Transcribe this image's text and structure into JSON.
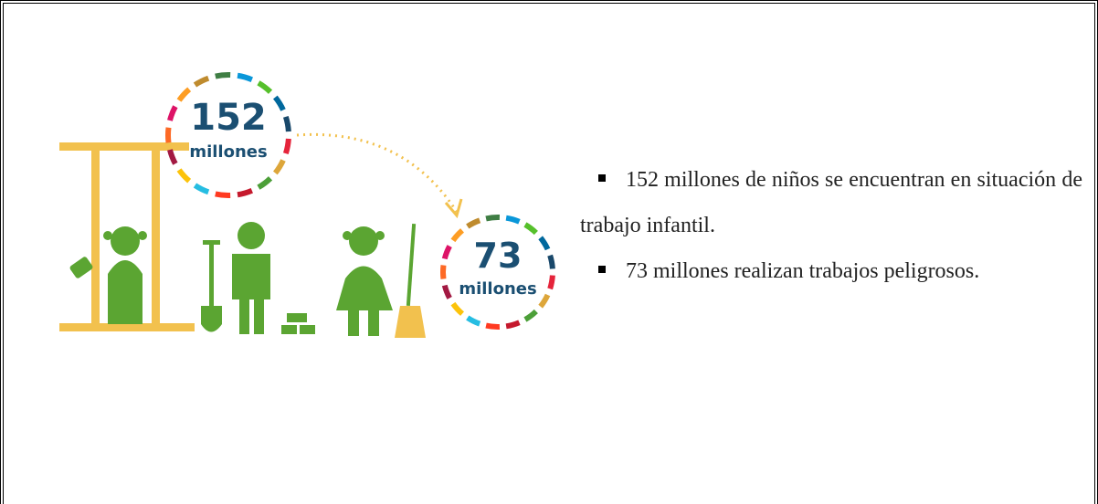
{
  "infographic": {
    "circles": [
      {
        "number": "152",
        "unit": "millones"
      },
      {
        "number": "73",
        "unit": "millones"
      }
    ]
  },
  "bullets": [
    "152 millones de niños se encuentran en situación de trabajo infantil.",
    "73 millones realizan trabajos peligrosos."
  ]
}
